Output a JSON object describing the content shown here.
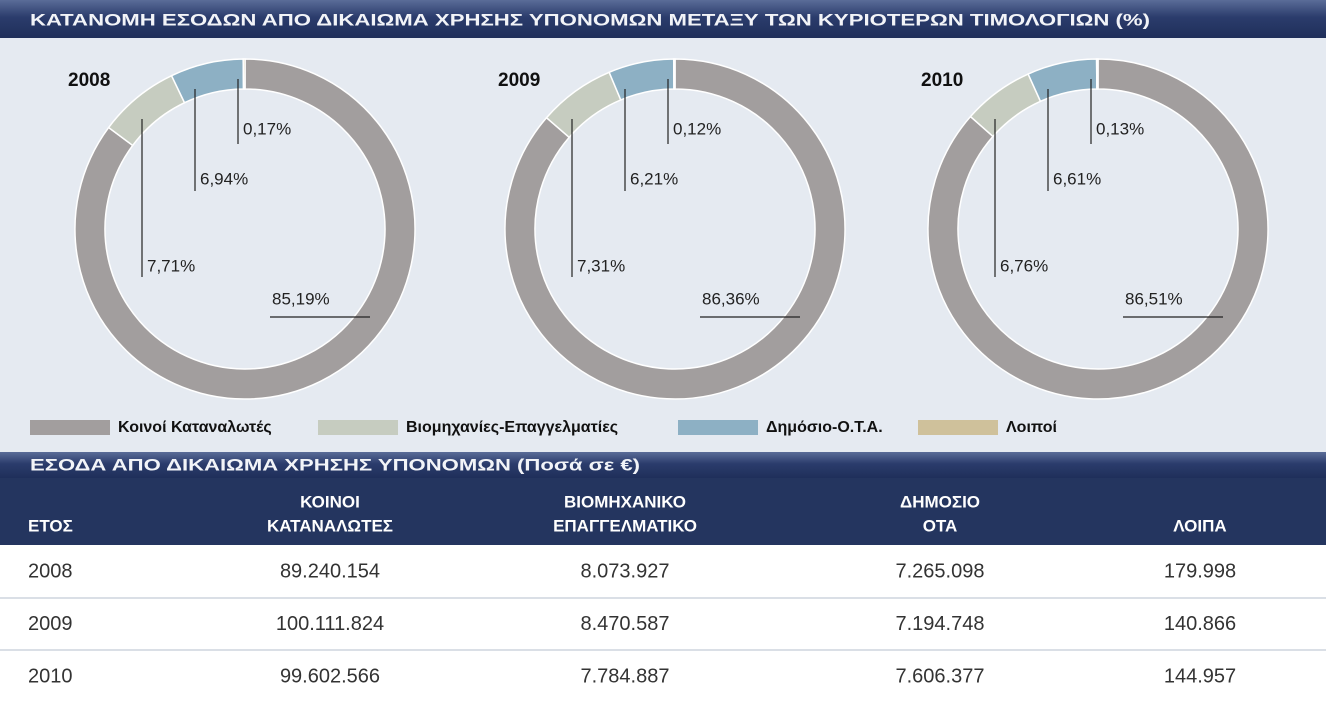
{
  "title": "ΚΑΤΑΝΟΜΗ ΕΣΟΔΩΝ ΑΠΟ ΔΙΚΑΙΩΜΑ ΧΡΗΣΗΣ ΥΠΟΝΟΜΩΝ ΜΕΤΑΞΥ ΤΩΝ ΚΥΡΙΟΤΕΡΩΝ ΤΙΜΟΛΟΓΙΩΝ (%)",
  "chart_data": [
    {
      "type": "pie",
      "title": "2008",
      "categories": [
        "Κοινοί Καταναλωτές",
        "Βιομηχανίες-Επαγγελματίες",
        "Δημόσιο-Ο.Τ.Α.",
        "Λοιποί"
      ],
      "values": [
        85.19,
        7.71,
        6.94,
        0.17
      ],
      "value_labels": [
        "85,19%",
        "7,71%",
        "6,94%",
        "0,17%"
      ],
      "colors": [
        "#a29e9e",
        "#c6ccc0",
        "#8db0c4",
        "#cfc19b"
      ]
    },
    {
      "type": "pie",
      "title": "2009",
      "categories": [
        "Κοινοί Καταναλωτές",
        "Βιομηχανίες-Επαγγελματίες",
        "Δημόσιο-Ο.Τ.Α.",
        "Λοιποί"
      ],
      "values": [
        86.36,
        7.31,
        6.21,
        0.12
      ],
      "value_labels": [
        "86,36%",
        "7,31%",
        "6,21%",
        "0,12%"
      ],
      "colors": [
        "#a29e9e",
        "#c6ccc0",
        "#8db0c4",
        "#cfc19b"
      ]
    },
    {
      "type": "pie",
      "title": "2010",
      "categories": [
        "Κοινοί Καταναλωτές",
        "Βιομηχανίες-Επαγγελματίες",
        "Δημόσιο-Ο.Τ.Α.",
        "Λοιποί"
      ],
      "values": [
        86.51,
        6.76,
        6.61,
        0.13
      ],
      "value_labels": [
        "86,51%",
        "6,76%",
        "6,61%",
        "0,13%"
      ],
      "colors": [
        "#a29e9e",
        "#c6ccc0",
        "#8db0c4",
        "#cfc19b"
      ]
    }
  ],
  "table": {
    "title": "ΕΣΟΔΑ ΑΠΟ ΔΙΚΑΙΩΜΑ ΧΡΗΣΗΣ ΥΠΟΝΟΜΩΝ (Ποσά σε €)",
    "columns": [
      [
        "ΕΤΟΣ"
      ],
      [
        "ΚΟΙΝΟΙ",
        "ΚΑΤΑΝΑΛΩΤΕΣ"
      ],
      [
        "ΒΙΟΜΗΧΑΝΙΚΟ",
        "ΕΠΑΓΓΕΛΜΑΤΙΚΟ"
      ],
      [
        "ΔΗΜΟΣΙΟ",
        "ΟΤΑ"
      ],
      [
        "ΛΟΙΠΑ"
      ]
    ],
    "rows": [
      [
        "2008",
        "89.240.154",
        "8.073.927",
        "7.265.098",
        "179.998"
      ],
      [
        "2009",
        "100.111.824",
        "8.470.587",
        "7.194.748",
        "140.866"
      ],
      [
        "2010",
        "99.602.566",
        "7.784.887",
        "7.606.377",
        "144.957"
      ]
    ]
  }
}
